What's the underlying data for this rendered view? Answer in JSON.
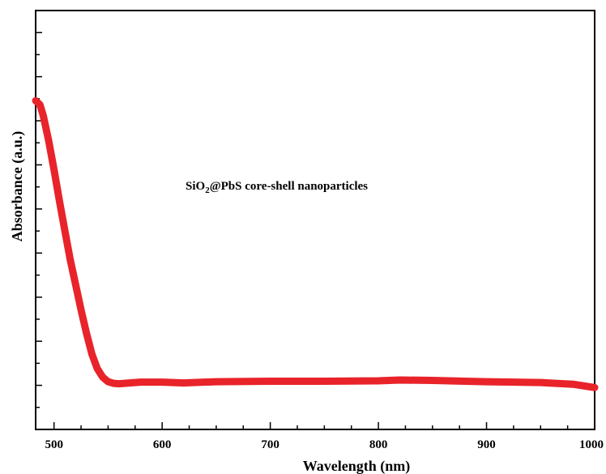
{
  "chart_data": {
    "type": "line",
    "xlabel": "Wavelength (nm)",
    "ylabel": "Absorbance (a.u.)",
    "xlim": [
      483,
      1000
    ],
    "ylim": [
      0,
      1
    ],
    "x_ticks": [
      500,
      600,
      700,
      800,
      900,
      1000
    ],
    "x_tick_labels": [
      "500",
      "600",
      "700",
      "800",
      "900",
      "1000"
    ],
    "y_tick_labels_shown": false,
    "grid": false,
    "annotation": {
      "prefix": "SiO",
      "subscript": "2",
      "suffix": "@PbS core-shell nanoparticles"
    },
    "series": [
      {
        "color": "#e8242a",
        "x": [
          483,
          487,
          490,
          495,
          500,
          505,
          510,
          515,
          520,
          525,
          530,
          535,
          540,
          545,
          550,
          555,
          560,
          570,
          580,
          600,
          620,
          650,
          700,
          750,
          800,
          820,
          850,
          880,
          900,
          950,
          980,
          1000
        ],
        "y": [
          0.785,
          0.775,
          0.75,
          0.69,
          0.62,
          0.545,
          0.475,
          0.405,
          0.345,
          0.285,
          0.23,
          0.18,
          0.145,
          0.125,
          0.114,
          0.11,
          0.109,
          0.111,
          0.113,
          0.113,
          0.111,
          0.114,
          0.115,
          0.115,
          0.116,
          0.118,
          0.117,
          0.115,
          0.114,
          0.112,
          0.108,
          0.1
        ]
      }
    ]
  }
}
